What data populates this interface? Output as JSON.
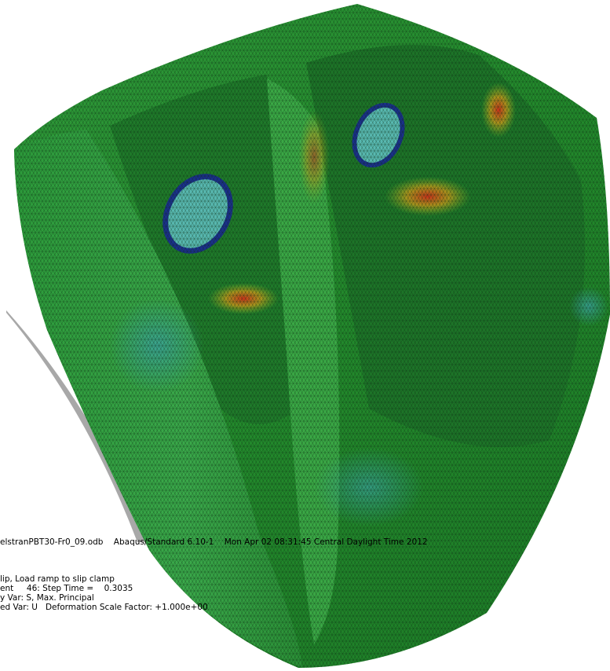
{
  "viewport": {
    "file_line": "elstranPBT30-Fr0_09.odb    Abaqus/Standard 6.10-1    Mon Apr 02 08:31:45 Central Daylight Time 2012",
    "status_lines": [
      "lip, Load ramp to slip clamp",
      "ent     46: Step Time =    0.3035",
      "y Var: S, Max. Principal",
      "ed Var: U   Deformation Scale Factor: +1.000e+00"
    ]
  }
}
